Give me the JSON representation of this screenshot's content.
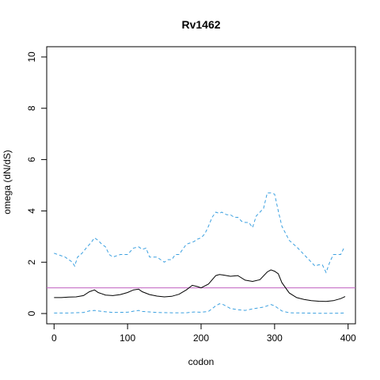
{
  "chart_data": {
    "type": "line",
    "title": "Rv1462",
    "xlabel": "codon",
    "ylabel": "omega (dN/dS)",
    "xlim": [
      -10,
      410
    ],
    "ylim": [
      -0.4,
      10.4
    ],
    "xticks": [
      0,
      100,
      200,
      300,
      400
    ],
    "yticks": [
      0,
      2,
      4,
      6,
      8,
      10
    ],
    "reference_line": {
      "y": 1,
      "color": "#c060c0"
    },
    "colors": {
      "estimate": "#000000",
      "interval": "#3ba0e0"
    },
    "series": [
      {
        "style": "solid",
        "x": [
          0,
          10,
          20,
          30,
          40,
          48,
          55,
          60,
          70,
          80,
          90,
          100,
          108,
          115,
          120,
          130,
          140,
          150,
          160,
          170,
          180,
          188,
          195,
          200,
          210,
          220,
          225,
          230,
          240,
          250,
          260,
          270,
          280,
          290,
          295,
          300,
          305,
          310,
          320,
          330,
          340,
          350,
          360,
          370,
          380,
          390,
          396
        ],
        "y": [
          0.62,
          0.62,
          0.64,
          0.65,
          0.7,
          0.85,
          0.92,
          0.82,
          0.72,
          0.7,
          0.74,
          0.82,
          0.92,
          0.95,
          0.85,
          0.74,
          0.68,
          0.65,
          0.67,
          0.75,
          0.92,
          1.1,
          1.05,
          1.0,
          1.15,
          1.48,
          1.52,
          1.5,
          1.45,
          1.48,
          1.3,
          1.25,
          1.32,
          1.62,
          1.7,
          1.65,
          1.55,
          1.2,
          0.8,
          0.62,
          0.55,
          0.5,
          0.48,
          0.47,
          0.5,
          0.58,
          0.66
        ]
      },
      {
        "style": "dashed",
        "x": [
          0,
          5,
          10,
          15,
          20,
          25,
          28,
          32,
          38,
          45,
          50,
          55,
          60,
          65,
          70,
          75,
          80,
          90,
          100,
          108,
          115,
          120,
          125,
          130,
          140,
          145,
          150,
          155,
          160,
          165,
          170,
          175,
          180,
          185,
          190,
          195,
          200,
          205,
          210,
          215,
          220,
          225,
          228,
          235,
          240,
          245,
          250,
          255,
          260,
          265,
          270,
          275,
          280,
          285,
          290,
          295,
          300,
          305,
          310,
          320,
          330,
          340,
          350,
          355,
          360,
          365,
          370,
          375,
          380,
          385,
          390,
          395
        ],
        "y": [
          2.35,
          2.3,
          2.25,
          2.2,
          2.1,
          2.0,
          1.85,
          2.2,
          2.35,
          2.6,
          2.75,
          2.95,
          2.85,
          2.7,
          2.6,
          2.3,
          2.2,
          2.3,
          2.3,
          2.55,
          2.6,
          2.5,
          2.55,
          2.2,
          2.2,
          2.1,
          2.0,
          2.1,
          2.1,
          2.3,
          2.3,
          2.5,
          2.7,
          2.75,
          2.8,
          2.9,
          2.95,
          3.1,
          3.4,
          3.75,
          3.95,
          3.9,
          3.95,
          3.85,
          3.85,
          3.75,
          3.75,
          3.6,
          3.55,
          3.55,
          3.35,
          3.8,
          3.95,
          4.1,
          4.7,
          4.7,
          4.65,
          4.0,
          3.4,
          2.85,
          2.6,
          2.3,
          2.0,
          1.85,
          1.9,
          1.9,
          1.6,
          2.0,
          2.3,
          2.3,
          2.3,
          2.6
        ]
      },
      {
        "style": "dashed",
        "x": [
          0,
          20,
          40,
          48,
          55,
          65,
          80,
          100,
          110,
          115,
          120,
          140,
          160,
          180,
          190,
          200,
          210,
          220,
          225,
          230,
          240,
          250,
          260,
          270,
          285,
          290,
          295,
          300,
          305,
          310,
          320,
          340,
          360,
          380,
          396
        ],
        "y": [
          0.02,
          0.02,
          0.04,
          0.1,
          0.12,
          0.08,
          0.04,
          0.05,
          0.1,
          0.12,
          0.08,
          0.04,
          0.03,
          0.03,
          0.06,
          0.05,
          0.08,
          0.3,
          0.38,
          0.35,
          0.2,
          0.15,
          0.12,
          0.18,
          0.25,
          0.3,
          0.35,
          0.3,
          0.2,
          0.1,
          0.03,
          0.02,
          0.01,
          0.01,
          0.02
        ]
      }
    ]
  }
}
